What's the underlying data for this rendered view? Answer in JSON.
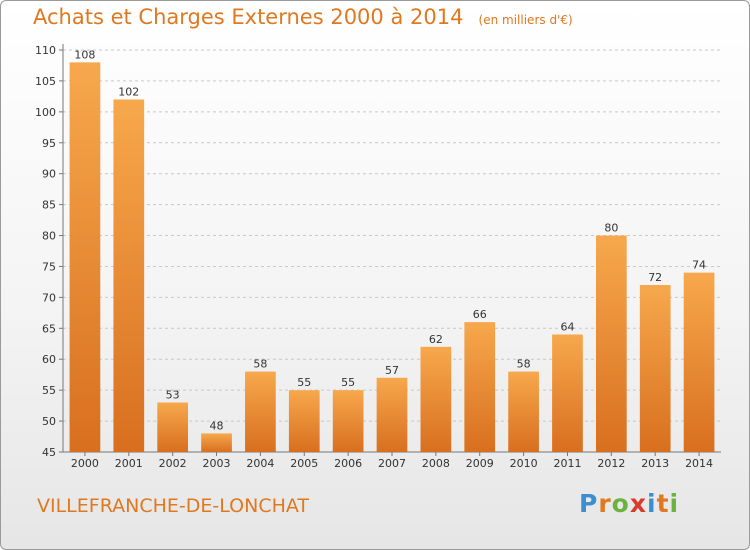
{
  "header": {
    "title": "Achats et Charges Externes 2000 à 2014",
    "unit_note": "(en milliers d'€)"
  },
  "footer": {
    "commune": "VILLEFRANCHE-DE-LONCHAT",
    "logo_letters": [
      "P",
      "r",
      "o",
      "x",
      "i",
      "t",
      "i"
    ],
    "logo_colors": [
      "#3a8fd0",
      "#e07820",
      "#6cb33e",
      "#d93a2b",
      "#3a8fd0",
      "#e07820",
      "#6cb33e"
    ]
  },
  "colors": {
    "bar_light": "#f7a84d",
    "bar_dark": "#d86f1f",
    "title": "#e07820"
  },
  "chart_data": {
    "type": "bar",
    "title": "Achats et Charges Externes 2000 à 2014",
    "subtitle": "(en milliers d'€)",
    "categories": [
      "2000",
      "2001",
      "2002",
      "2003",
      "2004",
      "2005",
      "2006",
      "2007",
      "2008",
      "2009",
      "2010",
      "2011",
      "2012",
      "2013",
      "2014"
    ],
    "values": [
      108,
      102,
      53,
      48,
      58,
      55,
      55,
      57,
      62,
      66,
      58,
      64,
      80,
      72,
      74
    ],
    "ylim": [
      45,
      110
    ],
    "yticks": [
      45,
      50,
      55,
      60,
      65,
      70,
      75,
      80,
      85,
      90,
      95,
      100,
      105,
      110
    ],
    "grid": "horizontal dashed",
    "data_labels": true
  }
}
